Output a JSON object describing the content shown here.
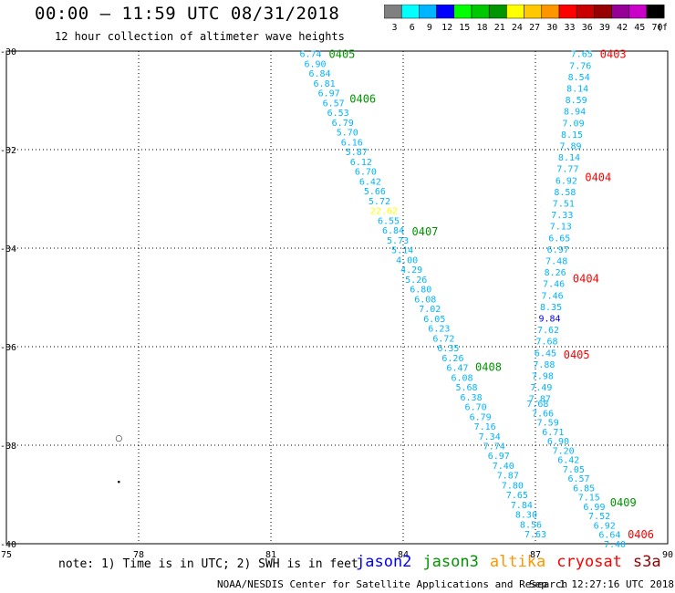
{
  "header": {
    "title": "00:00 – 11:59 UTC 08/31/2018",
    "subtitle": "12 hour collection of altimeter wave heights"
  },
  "colorbar": {
    "labels": [
      "3",
      "6",
      "9",
      "12",
      "15",
      "18",
      "21",
      "24",
      "27",
      "30",
      "33",
      "36",
      "39",
      "42",
      "45",
      "70",
      "(ft)"
    ],
    "colors": [
      "#808080",
      "#00ffff",
      "#00b4ff",
      "#0000ff",
      "#00ff00",
      "#00c800",
      "#009600",
      "#ffff00",
      "#ffc800",
      "#ff9600",
      "#ff0000",
      "#c80000",
      "#960000",
      "#960096",
      "#c800c8",
      "#000000"
    ]
  },
  "footer": {
    "note": "note: 1) Time is in UTC; 2) SWH is in feet",
    "satellites": [
      {
        "name": "jason2",
        "color": "#0000ff"
      },
      {
        "name": "jason3",
        "color": "#009600"
      },
      {
        "name": "altika",
        "color": "#ff9600"
      },
      {
        "name": "cryosat",
        "color": "#ff0000"
      },
      {
        "name": "s3a",
        "color": "#960000"
      }
    ],
    "credit": "NOAA/NESDIS Center for Satellite Applications and Research",
    "timestamp": "Sep  1 12:27:16 UTC 2018"
  },
  "chart_data": {
    "type": "scatter",
    "xlim": [
      75,
      90
    ],
    "ylim": [
      -40,
      -30
    ],
    "x_ticks": [
      "75",
      "78",
      "81",
      "84",
      "87",
      "90"
    ],
    "y_ticks": [
      "-30",
      "-32",
      "-34",
      "-36",
      "-38",
      "-40"
    ],
    "grid": true,
    "track_a": {
      "lon_start": 81.9,
      "lat_start": -30.05,
      "lon_end": 87.0,
      "lat_end": -39.8,
      "color": "#00b4ff",
      "values": [
        "6.74",
        "6.90",
        "6.84",
        "6.81",
        "6.97",
        "6.57",
        "6.53",
        "6.79",
        "5.70",
        "6.16",
        "5.87",
        "6.12",
        "6.70",
        "6.42",
        "5.66",
        "5.72",
        "22.62",
        "6.55",
        "6.84",
        "5.73",
        "5.14",
        "4.00",
        "4.29",
        "5.26",
        "6.80",
        "6.08",
        "7.02",
        "6.05",
        "6.23",
        "6.72",
        "6.35",
        "6.26",
        "6.47",
        "6.08",
        "5.68",
        "6.38",
        "6.70",
        "6.79",
        "7.16",
        "7.34",
        "7.74",
        "6.97",
        "7.40",
        "7.87",
        "7.80",
        "7.65",
        "7.84",
        "8.30",
        "8.56",
        "7.63"
      ],
      "highlight": {
        "index": 16,
        "color": "#ffff00"
      },
      "labels": [
        {
          "text": "0405",
          "lat": -30.05,
          "color": "#009600"
        },
        {
          "text": "0406",
          "lat": -30.95,
          "color": "#009600"
        },
        {
          "text": "0407",
          "lat": -33.65,
          "color": "#009600"
        },
        {
          "text": "0408",
          "lat": -36.4,
          "color": "#009600"
        }
      ]
    },
    "track_b": {
      "lon_start": 88.05,
      "lat_start": -30.05,
      "lon_end": 87.1,
      "lat_end": -37.05,
      "color": "#00b4ff",
      "values": [
        "7.65",
        "7.76",
        "8.54",
        "8.14",
        "8.59",
        "8.94",
        "7.09",
        "8.15",
        "7.89",
        "8.14",
        "7.77",
        "6.92",
        "8.58",
        "7.51",
        "7.33",
        "7.13",
        "6.65",
        "6.97",
        "7.48",
        "8.26",
        "7.46",
        "7.46",
        "8.35",
        "9.84",
        "7.62",
        "7.68",
        "6.45",
        "7.88",
        "7.98",
        "7.49",
        "7.87"
      ],
      "highlight": {
        "index": 23,
        "color": "#0000ff"
      },
      "labels": [
        {
          "text": "0403",
          "lat": -30.05,
          "color": "#ff0000"
        },
        {
          "text": "0404",
          "lat": -32.55,
          "color": "#ff0000"
        },
        {
          "text": "0404",
          "lat": -34.6,
          "color": "#ff0000"
        },
        {
          "text": "0405",
          "lat": -36.15,
          "color": "#ff0000"
        }
      ]
    },
    "track_c": {
      "lon_start": 87.05,
      "lat_start": -37.15,
      "lon_end": 88.8,
      "lat_end": -40.0,
      "color": "#00b4ff",
      "values": [
        "7.68",
        "7.66",
        "7.59",
        "6.71",
        "6.90",
        "7.20",
        "6.42",
        "7.05",
        "6.57",
        "6.85",
        "7.15",
        "6.99",
        "7.52",
        "6.92",
        "6.64",
        "7.40"
      ],
      "labels": [
        {
          "text": "0409",
          "lat": -39.15,
          "color": "#009600"
        },
        {
          "text": "0406",
          "lat": -39.8,
          "color": "#ff0000"
        }
      ]
    },
    "markers": [
      {
        "lon": 77.55,
        "lat": -37.85,
        "symbol": "○"
      },
      {
        "lon": 77.55,
        "lat": -38.75,
        "symbol": "•"
      }
    ]
  }
}
